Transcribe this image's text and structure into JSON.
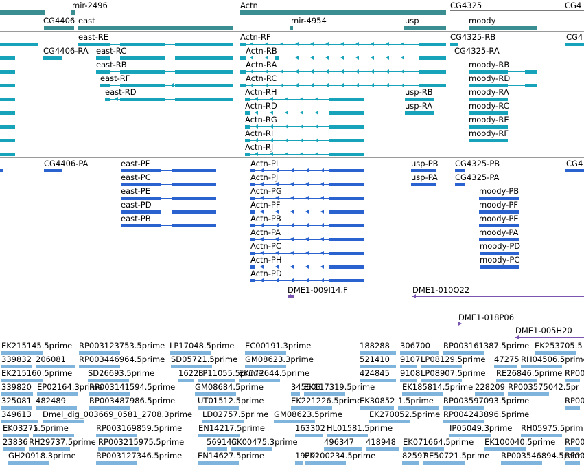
{
  "colors": {
    "gene": "#3a8e92",
    "transcript_teal": "#17a3b9",
    "transcript_blue": "#2a63cf",
    "clone": "#7a55b0",
    "est": "#7fb4dc",
    "separator": "#9a9a9a"
  },
  "tracks": {
    "genes": {
      "labels": [
        "mir-2496",
        "Actn",
        "CG4325",
        "CG4406",
        "east",
        "mir-4954",
        "usp",
        "moody",
        "CG4"
      ]
    },
    "transcripts_a": {
      "labels": [
        "east-RE",
        "Actn-RF",
        "CG4325-RB",
        "CG4",
        "CG4406-RA",
        "east-RC",
        "Actn-RB",
        "CG4325-RA",
        "east-RB",
        "Actn-RA",
        "moody-RB",
        "Actn-RC",
        "east-RF",
        "moody-RD",
        "east-RD",
        "Actn-RH",
        "usp-RB",
        "moody-RA",
        "Actn-RD",
        "usp-RA",
        "moody-RC",
        "Actn-RG",
        "moody-RE",
        "Actn-RI",
        "moody-RF",
        "Actn-RJ"
      ]
    },
    "transcripts_b": {
      "labels": [
        "CG4406-PA",
        "east-PF",
        "Actn-PI",
        "usp-PB",
        "CG4325-PB",
        "CG4",
        "east-PC",
        "Actn-PJ",
        "usp-PA",
        "CG4325-PA",
        "east-PE",
        "Actn-PG",
        "moody-PB",
        "east-PD",
        "Actn-PF",
        "moody-PF",
        "east-PB",
        "Actn-PB",
        "moody-PE",
        "Actn-PA",
        "moody-PA",
        "Actn-PC",
        "moody-PD",
        "Actn-PH",
        "moody-PC",
        "Actn-PD"
      ]
    },
    "clones": {
      "labels": [
        "DME1-009I14.F",
        "DME1-010O22",
        "DME1-018P06",
        "DME1-005H20"
      ]
    },
    "ests": {
      "labels": [
        "EK215145.5prime",
        "RP003123753.5prime",
        "LP17048.5prime",
        "EC00191.3prime",
        "188288",
        "306700",
        "RP003161387.5prime",
        "EK253705.5",
        "339832",
        "206081",
        "RP003446964.5prime",
        "SD05721.5prime",
        "GM08623.3prime",
        "521410",
        "9107",
        "LP08129.5prime",
        "47275",
        "RH04506.5prime",
        "EK215160.5prime",
        "SD26693.5prime",
        "16228",
        "LP11055.5prime",
        "EK072644.5prime",
        "424845",
        "9108",
        "LP08907.5prime",
        "RE26846.5prime",
        "RP00",
        "339820",
        "EP02164.3prime",
        "RP003141594.5prime",
        "GM08684.5prime",
        "345603",
        "EK117319.5prime",
        "EK185814.5prime",
        "228209",
        "RP003575042.5pr",
        "325081",
        "482489",
        "RP003487986.5prime",
        "UT01512.5prime",
        "EK221226.5prime",
        "EK30852",
        "1.5prime",
        "RP003597093.5prime",
        "RP00",
        "349613",
        "Dmel_dig_003669_0581_2708.3prime",
        "LD02757.5prime",
        "GM08623.5prime",
        "EK270052.5prime",
        "RP004243896.5prime",
        "EK03275",
        "1.5prime",
        "RP003169859.5prime",
        "EN14217.5prime",
        "163302",
        "HL01581.5prime",
        "IP05049.3prime",
        "RH05975.5prim",
        "23836",
        "RH29737.5prime",
        "RP003215975.5prime",
        "569145",
        "CK00475.3prime",
        "496347",
        "418948",
        "EK071664.5prime",
        "EK100040.5prime",
        "RP00",
        "GH20918.3prime",
        "RP003127346.5prime",
        "EN14627.5prime",
        "19291",
        "EK200234.5prime",
        "82597",
        "RE50721.5prime",
        "RP003546894.5prime",
        "RP00"
      ]
    }
  }
}
